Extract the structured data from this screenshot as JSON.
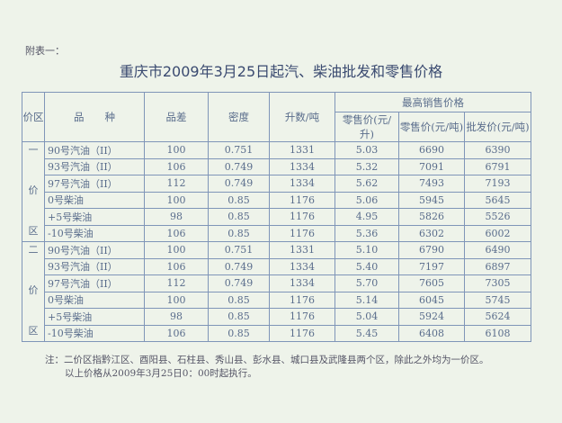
{
  "attachment_label": "附表一：",
  "title": "重庆市2009年3月25日起汽、柴油批发和零售价格",
  "headers": {
    "zone": "价区",
    "product": "品　　种",
    "grade_diff": "品差",
    "density": "密度",
    "liters_per_ton": "升数/吨",
    "max_price": "最高销售价格",
    "retail_l": "零售价(元/升)",
    "retail_t": "零售价(元/吨)",
    "wholesale_t": "批发价(元/吨)"
  },
  "zones": [
    {
      "label": [
        "一",
        "价",
        "区"
      ],
      "rows": [
        [
          "90号汽油（II）",
          "100",
          "0.751",
          "1331",
          "5.03",
          "6690",
          "6390"
        ],
        [
          "93号汽油（II）",
          "106",
          "0.749",
          "1334",
          "5.32",
          "7091",
          "6791"
        ],
        [
          "97号汽油（II）",
          "112",
          "0.749",
          "1334",
          "5.62",
          "7493",
          "7193"
        ],
        [
          "0号柴油",
          "100",
          "0.85",
          "1176",
          "5.06",
          "5945",
          "5645"
        ],
        [
          "+5号柴油",
          "98",
          "0.85",
          "1176",
          "4.95",
          "5826",
          "5526"
        ],
        [
          "-10号柴油",
          "106",
          "0.85",
          "1176",
          "5.36",
          "6302",
          "6002"
        ]
      ]
    },
    {
      "label": [
        "二",
        "价",
        "区"
      ],
      "rows": [
        [
          "90号汽油（II）",
          "100",
          "0.751",
          "1331",
          "5.10",
          "6790",
          "6490"
        ],
        [
          "93号汽油（II）",
          "106",
          "0.749",
          "1334",
          "5.40",
          "7197",
          "6897"
        ],
        [
          "97号汽油（II）",
          "112",
          "0.749",
          "1334",
          "5.70",
          "7605",
          "7305"
        ],
        [
          "0号柴油",
          "100",
          "0.85",
          "1176",
          "5.14",
          "6045",
          "5745"
        ],
        [
          "+5号柴油",
          "98",
          "0.85",
          "1176",
          "5.04",
          "5924",
          "5624"
        ],
        [
          "-10号柴油",
          "106",
          "0.85",
          "1176",
          "5.45",
          "6408",
          "6108"
        ]
      ]
    }
  ],
  "notes": [
    "注：二价区指黔江区、酉阳县、石柱县、秀山县、彭水县、城口县及武隆县两个区，除此之外均为一价区。",
    "以上价格从2009年3月25日0：00时起执行。"
  ]
}
